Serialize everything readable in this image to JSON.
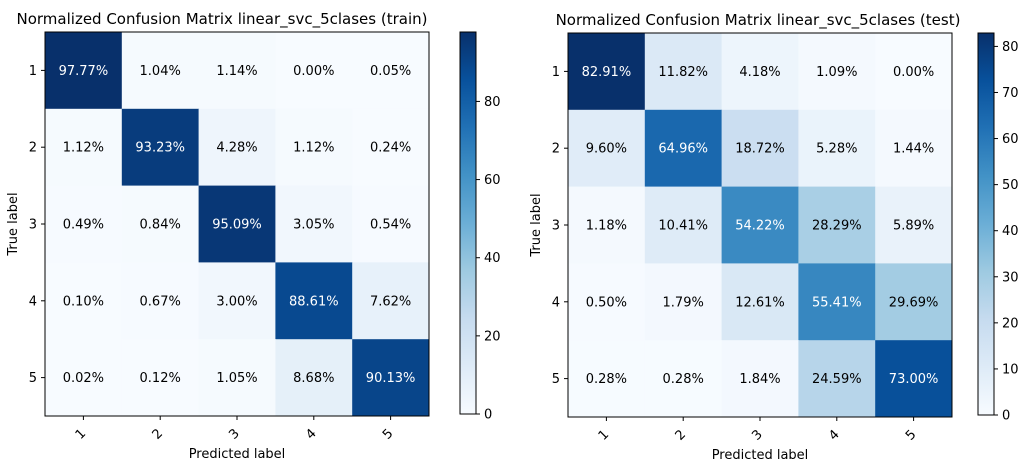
{
  "chart_data": [
    {
      "type": "heatmap",
      "title": "Normalized Confusion Matrix linear_svc_5clases (train)",
      "xlabel": "Predicted label",
      "ylabel": "True label",
      "x_categories": [
        "1",
        "2",
        "3",
        "4",
        "5"
      ],
      "y_categories": [
        "1",
        "2",
        "3",
        "4",
        "5"
      ],
      "values": [
        [
          97.77,
          1.04,
          1.14,
          0.0,
          0.05
        ],
        [
          1.12,
          93.23,
          4.28,
          1.12,
          0.24
        ],
        [
          0.49,
          0.84,
          95.09,
          3.05,
          0.54
        ],
        [
          0.1,
          0.67,
          3.0,
          88.61,
          7.62
        ],
        [
          0.02,
          0.12,
          1.05,
          8.68,
          90.13
        ]
      ],
      "cell_labels": [
        [
          "97.77%",
          "1.04%",
          "1.14%",
          "0.00%",
          "0.05%"
        ],
        [
          "1.12%",
          "93.23%",
          "4.28%",
          "1.12%",
          "0.24%"
        ],
        [
          "0.49%",
          "0.84%",
          "95.09%",
          "3.05%",
          "0.54%"
        ],
        [
          "0.10%",
          "0.67%",
          "3.00%",
          "88.61%",
          "7.62%"
        ],
        [
          "0.02%",
          "0.12%",
          "1.05%",
          "8.68%",
          "90.13%"
        ]
      ],
      "colorbar": {
        "min": 0,
        "max": 97.77,
        "ticks": [
          "0",
          "20",
          "40",
          "60",
          "80"
        ],
        "colormap": "Blues"
      }
    },
    {
      "type": "heatmap",
      "title": "Normalized Confusion Matrix linear_svc_5clases (test)",
      "xlabel": "Predicted label",
      "ylabel": "True label",
      "x_categories": [
        "1",
        "2",
        "3",
        "4",
        "5"
      ],
      "y_categories": [
        "1",
        "2",
        "3",
        "4",
        "5"
      ],
      "values": [
        [
          82.91,
          11.82,
          4.18,
          1.09,
          0.0
        ],
        [
          9.6,
          64.96,
          18.72,
          5.28,
          1.44
        ],
        [
          1.18,
          10.41,
          54.22,
          28.29,
          5.89
        ],
        [
          0.5,
          1.79,
          12.61,
          55.41,
          29.69
        ],
        [
          0.28,
          0.28,
          1.84,
          24.59,
          73.0
        ]
      ],
      "cell_labels": [
        [
          "82.91%",
          "11.82%",
          "4.18%",
          "1.09%",
          "0.00%"
        ],
        [
          "9.60%",
          "64.96%",
          "18.72%",
          "5.28%",
          "1.44%"
        ],
        [
          "1.18%",
          "10.41%",
          "54.22%",
          "28.29%",
          "5.89%"
        ],
        [
          "0.50%",
          "1.79%",
          "12.61%",
          "55.41%",
          "29.69%"
        ],
        [
          "0.28%",
          "0.28%",
          "1.84%",
          "24.59%",
          "73.00%"
        ]
      ],
      "colorbar": {
        "min": 0,
        "max": 82.91,
        "ticks": [
          "0",
          "10",
          "20",
          "30",
          "40",
          "50",
          "60",
          "70",
          "80"
        ],
        "colormap": "Blues"
      }
    }
  ]
}
